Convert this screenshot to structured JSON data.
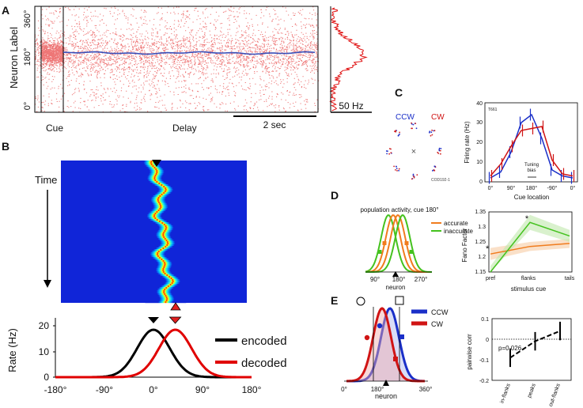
{
  "panel_A": {
    "letter": "A",
    "ylabel": "Neuron Label",
    "yticks": [
      "360°",
      "180°",
      "0°"
    ],
    "cue_label": "Cue",
    "delay_label": "Delay",
    "scalebar_time": "2 sec",
    "scalebar_rate": "50 Hz"
  },
  "panel_B": {
    "letter": "B",
    "time_label": "Time",
    "ylabel": "Rate (Hz)",
    "yticks": [
      "0",
      "10",
      "20"
    ],
    "xticks": [
      "-180°",
      "-90°",
      "0°",
      "90°",
      "180°"
    ],
    "legend": [
      {
        "label": "encoded",
        "color": "#000000"
      },
      {
        "label": "decoded",
        "color": "#e00000"
      }
    ]
  },
  "panel_C": {
    "letter": "C",
    "ccw_label": "CCW",
    "cw_label": "CW",
    "ring_caption": "COD192-1",
    "cell_id": "T661",
    "ylabel": "Firing rate (Hz)",
    "yticks": [
      "0",
      "10",
      "20",
      "30",
      "40"
    ],
    "xticks": [
      "0°",
      "90°",
      "180°",
      "-90°",
      "0°"
    ],
    "xlabel": "Cue location",
    "annotation": "Tuning\nbias"
  },
  "panel_D": {
    "letter": "D",
    "title": "population activity, cue 180°",
    "legend": [
      {
        "label": "accurate",
        "color": "#f07c1e"
      },
      {
        "label": "inaccurate",
        "color": "#44c21e"
      }
    ],
    "xticks": [
      "90°",
      "180°",
      "270°"
    ],
    "xlabel": "neuron",
    "fano_ylabel": "Fano Factor",
    "fano_yticks": [
      "1.15",
      "1.2",
      "1.25",
      "1.3",
      "1.35"
    ],
    "fano_xticks": [
      "pref",
      "flanks",
      "tails"
    ],
    "fano_xlabel": "stimulus cue",
    "star": "*"
  },
  "panel_E": {
    "letter": "E",
    "legend": [
      {
        "label": "CCW",
        "color": "#1a2fc8"
      },
      {
        "label": "CW",
        "color": "#d01414"
      }
    ],
    "xticks": [
      "0°",
      "180°",
      "360°"
    ],
    "xlabel": "neuron",
    "corr_ylabel": "pairwise corr",
    "corr_yticks": [
      "0.1",
      "0",
      "-0.1",
      "-0.2"
    ],
    "corr_xticks": [
      "in-flanks",
      "peaks",
      "out-flanks"
    ],
    "pvalue": "p=0.026"
  },
  "chart_data": [
    {
      "type": "line",
      "title": "",
      "xlabel": "",
      "ylabel": "Rate (Hz)",
      "ylim": [
        0,
        25
      ],
      "xlim": [
        -180,
        180
      ],
      "series": [
        {
          "name": "encoded",
          "center": 0,
          "peak": 20,
          "sigma": 30
        },
        {
          "name": "decoded",
          "center": 40,
          "peak": 20,
          "sigma": 30
        }
      ]
    },
    {
      "type": "line",
      "title": "T661",
      "xlabel": "Cue location",
      "ylabel": "Firing rate (Hz)",
      "ylim": [
        0,
        40
      ],
      "categories": [
        "0°",
        "45°",
        "90°",
        "135°",
        "180°",
        "-135°",
        "-90°",
        "-45°",
        "0°"
      ],
      "series": [
        {
          "name": "CCW",
          "values": [
            2,
            5,
            15,
            30,
            34,
            22,
            6,
            3,
            2
          ]
        },
        {
          "name": "CW",
          "values": [
            3,
            9,
            18,
            26,
            27,
            28,
            11,
            4,
            3
          ]
        }
      ]
    },
    {
      "type": "line",
      "title": "",
      "xlabel": "stimulus cue",
      "ylabel": "Fano Factor",
      "ylim": [
        1.15,
        1.35
      ],
      "categories": [
        "pref",
        "flanks",
        "tails"
      ],
      "series": [
        {
          "name": "accurate",
          "values": [
            1.21,
            1.235,
            1.245
          ]
        },
        {
          "name": "inaccurate",
          "values": [
            1.15,
            1.315,
            1.27
          ]
        }
      ]
    },
    {
      "type": "line",
      "title": "",
      "xlabel": "",
      "ylabel": "pairwise corr",
      "ylim": [
        -0.2,
        0.1
      ],
      "categories": [
        "in-flanks",
        "peaks",
        "out-flanks"
      ],
      "series": [
        {
          "name": "pairwise corr",
          "values": [
            -0.09,
            -0.01,
            0.04
          ]
        }
      ]
    }
  ]
}
